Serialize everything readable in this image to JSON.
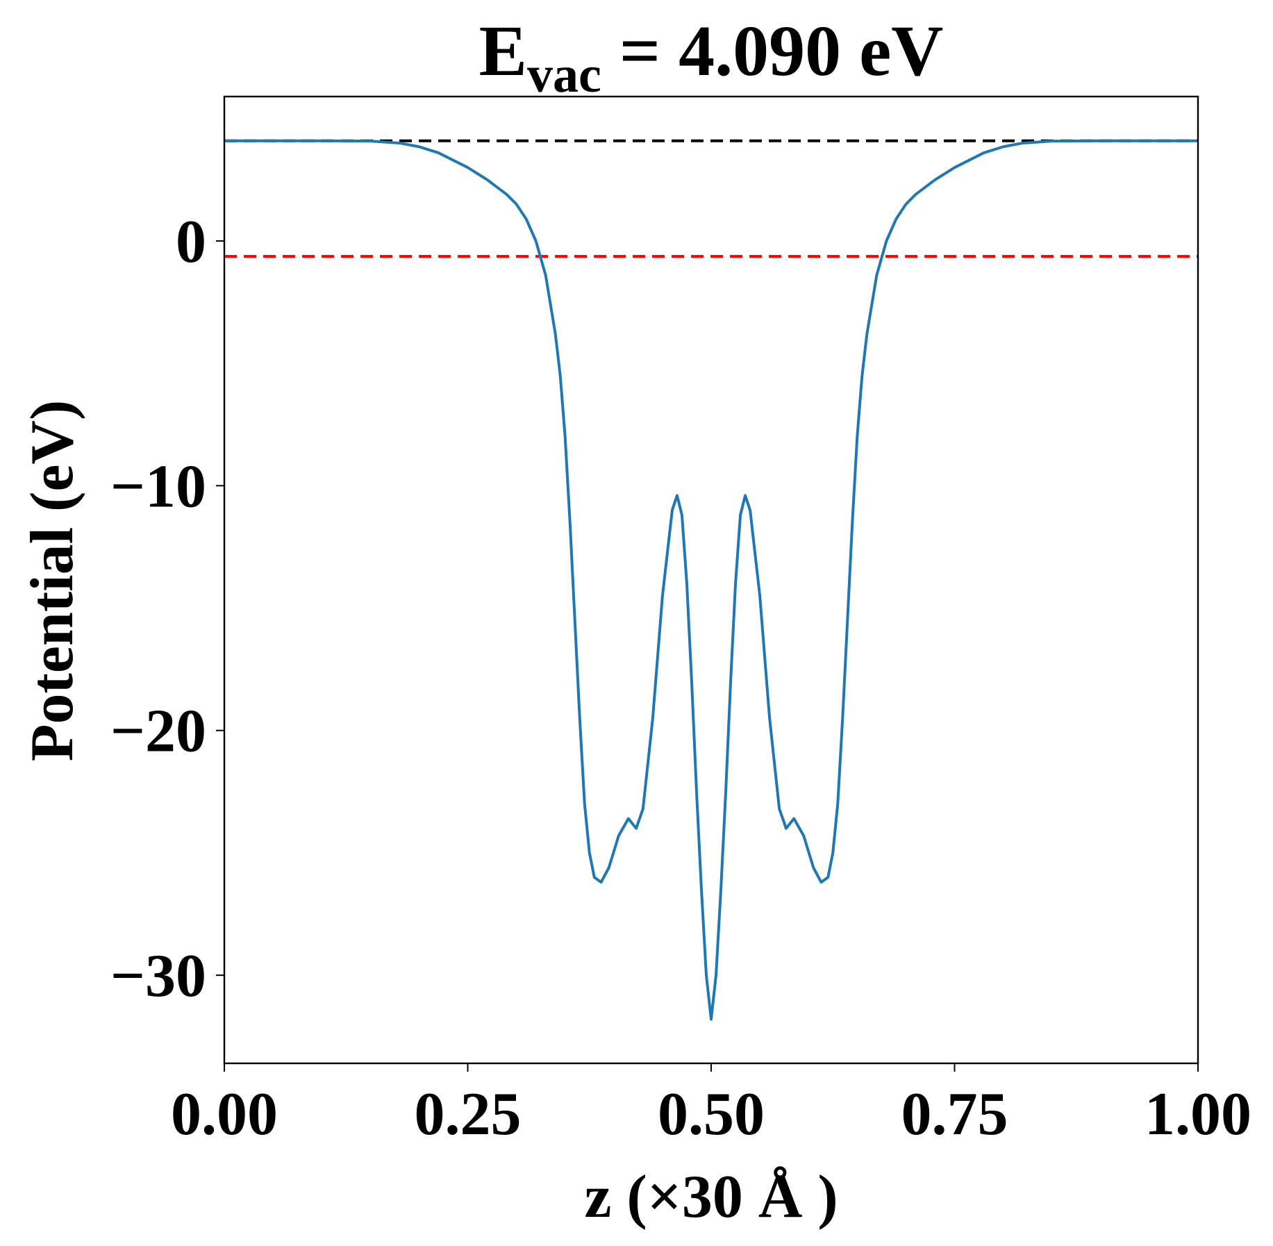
{
  "chart_data": {
    "type": "line",
    "title": {
      "main": "E",
      "sub": "vac",
      "rest": " = 4.090 eV"
    },
    "xlabel": "z (×30 Å )",
    "ylabel": "Potential (eV)",
    "xlim": [
      0,
      1
    ],
    "ylim": [
      -33.6,
      5.9
    ],
    "xticks": [
      {
        "value": 0,
        "label": "0.00"
      },
      {
        "value": 0.25,
        "label": "0.25"
      },
      {
        "value": 0.5,
        "label": "0.50"
      },
      {
        "value": 0.75,
        "label": "0.75"
      },
      {
        "value": 1,
        "label": "1.00"
      }
    ],
    "yticks": [
      {
        "value": -30,
        "label": "−30"
      },
      {
        "value": -20,
        "label": "−20"
      },
      {
        "value": -10,
        "label": "−10"
      },
      0
    ],
    "hlines": [
      {
        "value": 4.09,
        "color": "#000000"
      },
      {
        "value": -0.63,
        "color": "#ff0000"
      }
    ],
    "x": [
      0,
      0.05,
      0.1,
      0.15,
      0.18,
      0.2,
      0.22,
      0.25,
      0.27,
      0.29,
      0.3,
      0.31,
      0.32,
      0.33,
      0.34,
      0.345,
      0.35,
      0.355,
      0.36,
      0.365,
      0.37,
      0.375,
      0.38,
      0.387,
      0.395,
      0.405,
      0.415,
      0.423,
      0.43,
      0.44,
      0.45,
      0.46,
      0.465,
      0.47,
      0.475,
      0.48,
      0.485,
      0.49,
      0.495,
      0.5,
      0.505,
      0.51,
      0.515,
      0.52,
      0.525,
      0.53,
      0.535,
      0.54,
      0.55,
      0.56,
      0.57,
      0.577,
      0.585,
      0.595,
      0.605,
      0.613,
      0.62,
      0.625,
      0.63,
      0.635,
      0.64,
      0.645,
      0.65,
      0.655,
      0.66,
      0.67,
      0.68,
      0.69,
      0.7,
      0.71,
      0.73,
      0.75,
      0.78,
      0.8,
      0.82,
      0.85,
      0.9,
      0.95,
      1
    ],
    "series": [
      {
        "color": "#1f77b4",
        "values": [
          4.09,
          4.09,
          4.09,
          4.08,
          4.0,
          3.85,
          3.6,
          3.0,
          2.5,
          1.9,
          1.5,
          0.9,
          0.0,
          -1.4,
          -3.8,
          -5.5,
          -8.0,
          -11.5,
          -15.5,
          -19.5,
          -23.0,
          -25.0,
          -26.0,
          -26.2,
          -25.6,
          -24.3,
          -23.6,
          -24.0,
          -23.2,
          -19.5,
          -14.5,
          -11.0,
          -10.4,
          -11.2,
          -14.0,
          -18.0,
          -22.5,
          -26.5,
          -30.0,
          -31.8,
          -30.0,
          -26.5,
          -22.5,
          -18.0,
          -14.0,
          -11.2,
          -10.4,
          -11.0,
          -14.5,
          -19.5,
          -23.2,
          -24.0,
          -23.6,
          -24.3,
          -25.6,
          -26.2,
          -26.0,
          -25.0,
          -23.0,
          -19.5,
          -15.5,
          -11.5,
          -8.0,
          -5.5,
          -3.8,
          -1.4,
          0.0,
          0.9,
          1.5,
          1.9,
          2.5,
          3.0,
          3.6,
          3.85,
          4.0,
          4.08,
          4.09,
          4.09,
          4.09
        ]
      }
    ]
  }
}
